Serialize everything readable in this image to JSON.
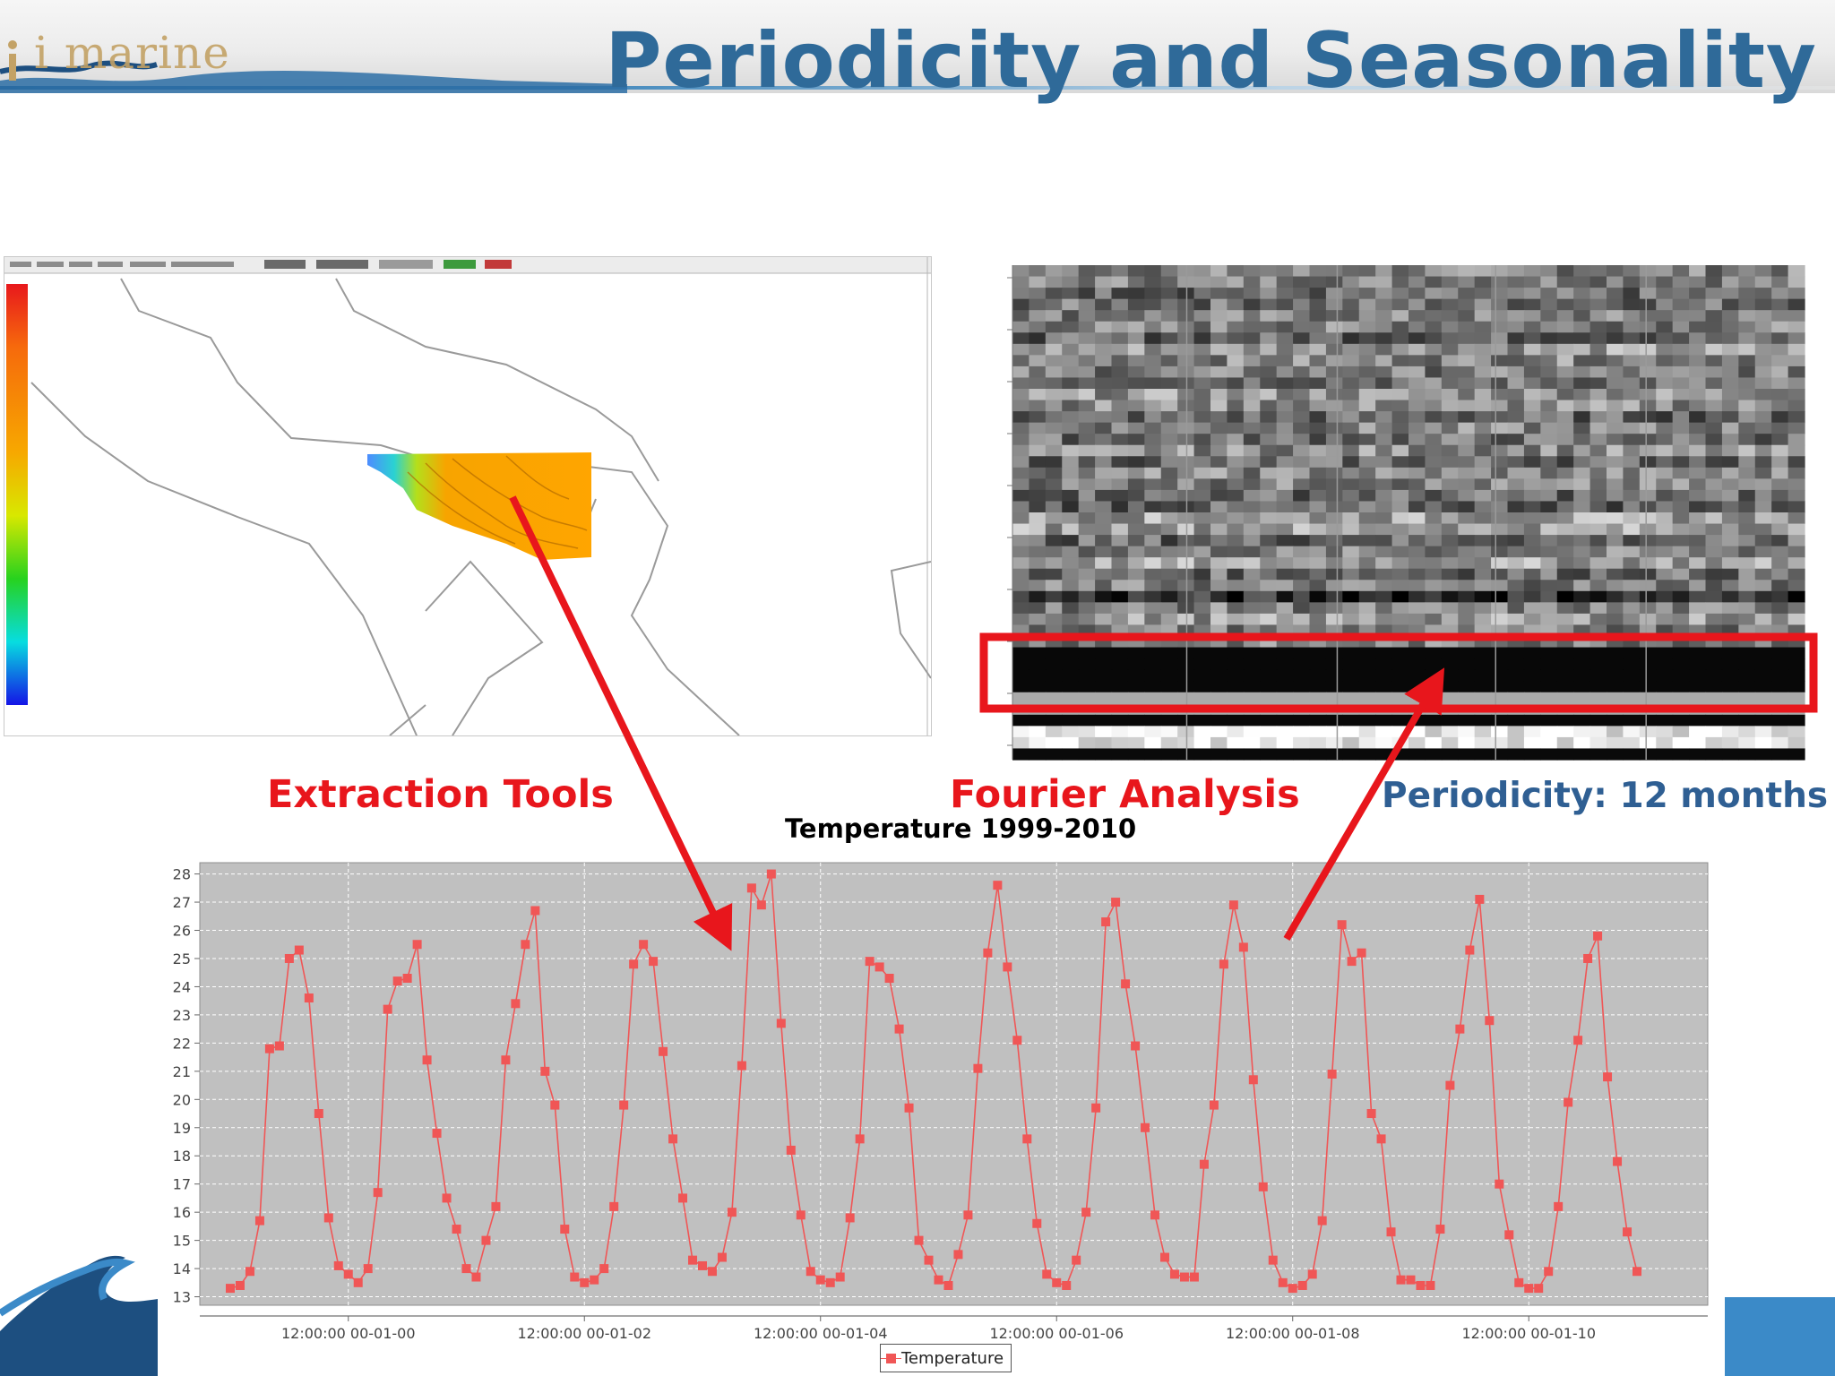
{
  "slide": {
    "title": "Periodicity and Seasonality",
    "logo_text": "i marine"
  },
  "captions": {
    "extraction": "Extraction Tools",
    "fourier": "Fourier Analysis",
    "periodicity": "Periodicity: 12 months"
  },
  "colors": {
    "title_blue": "#2f6a99",
    "caption_red": "#e8161c",
    "periodicity_blue": "#2f5f93",
    "series_red": "#f05656",
    "plot_bg": "#c0c0c0"
  },
  "chart_data": {
    "type": "line",
    "title": "Temperature 1999-2010",
    "xlabel": "",
    "ylabel": "",
    "ylim": [
      12.7,
      28.4
    ],
    "yticks": [
      13,
      14,
      15,
      16,
      17,
      18,
      19,
      20,
      21,
      22,
      23,
      24,
      25,
      26,
      27,
      28
    ],
    "xticklabels": [
      "12:00:00 00-01-00",
      "12:00:00 00-01-02",
      "12:00:00 00-01-04",
      "12:00:00 00-01-06",
      "12:00:00 00-01-08",
      "12:00:00 00-01-10"
    ],
    "xtick_index": [
      12,
      36,
      60,
      84,
      108,
      132
    ],
    "grid": true,
    "legend_position": "bottom-center",
    "series": [
      {
        "name": "Temperature",
        "values": [
          13.3,
          13.4,
          13.9,
          15.7,
          21.8,
          21.9,
          25.0,
          25.3,
          23.6,
          19.5,
          15.8,
          14.1,
          13.8,
          13.5,
          14.0,
          16.7,
          23.2,
          24.2,
          24.3,
          25.5,
          21.4,
          18.8,
          16.5,
          15.4,
          14.0,
          13.7,
          15.0,
          16.2,
          21.4,
          23.4,
          25.5,
          26.7,
          21.0,
          19.8,
          15.4,
          13.7,
          13.5,
          13.6,
          14.0,
          16.2,
          19.8,
          24.8,
          25.5,
          24.9,
          21.7,
          18.6,
          16.5,
          14.3,
          14.1,
          13.9,
          14.4,
          16.0,
          21.2,
          27.5,
          26.9,
          28.0,
          22.7,
          18.2,
          15.9,
          13.9,
          13.6,
          13.5,
          13.7,
          15.8,
          18.6,
          24.9,
          24.7,
          24.3,
          22.5,
          19.7,
          15.0,
          14.3,
          13.6,
          13.4,
          14.5,
          15.9,
          21.1,
          25.2,
          27.6,
          24.7,
          22.1,
          18.6,
          15.6,
          13.8,
          13.5,
          13.4,
          14.3,
          16.0,
          19.7,
          26.3,
          27.0,
          24.1,
          21.9,
          19.0,
          15.9,
          14.4,
          13.8,
          13.7,
          13.7,
          17.7,
          19.8,
          24.8,
          26.9,
          25.4,
          20.7,
          16.9,
          14.3,
          13.5,
          13.3,
          13.4,
          13.8,
          15.7,
          20.9,
          26.2,
          24.9,
          25.2,
          19.5,
          18.6,
          15.3,
          13.6,
          13.6,
          13.4,
          13.4,
          15.4,
          20.5,
          22.5,
          25.3,
          27.1,
          22.8,
          17.0,
          15.2,
          13.5,
          13.3,
          13.3,
          13.9,
          16.2,
          19.9,
          22.1,
          25.0,
          25.8,
          20.8,
          17.8,
          15.3,
          13.9
        ]
      }
    ]
  }
}
